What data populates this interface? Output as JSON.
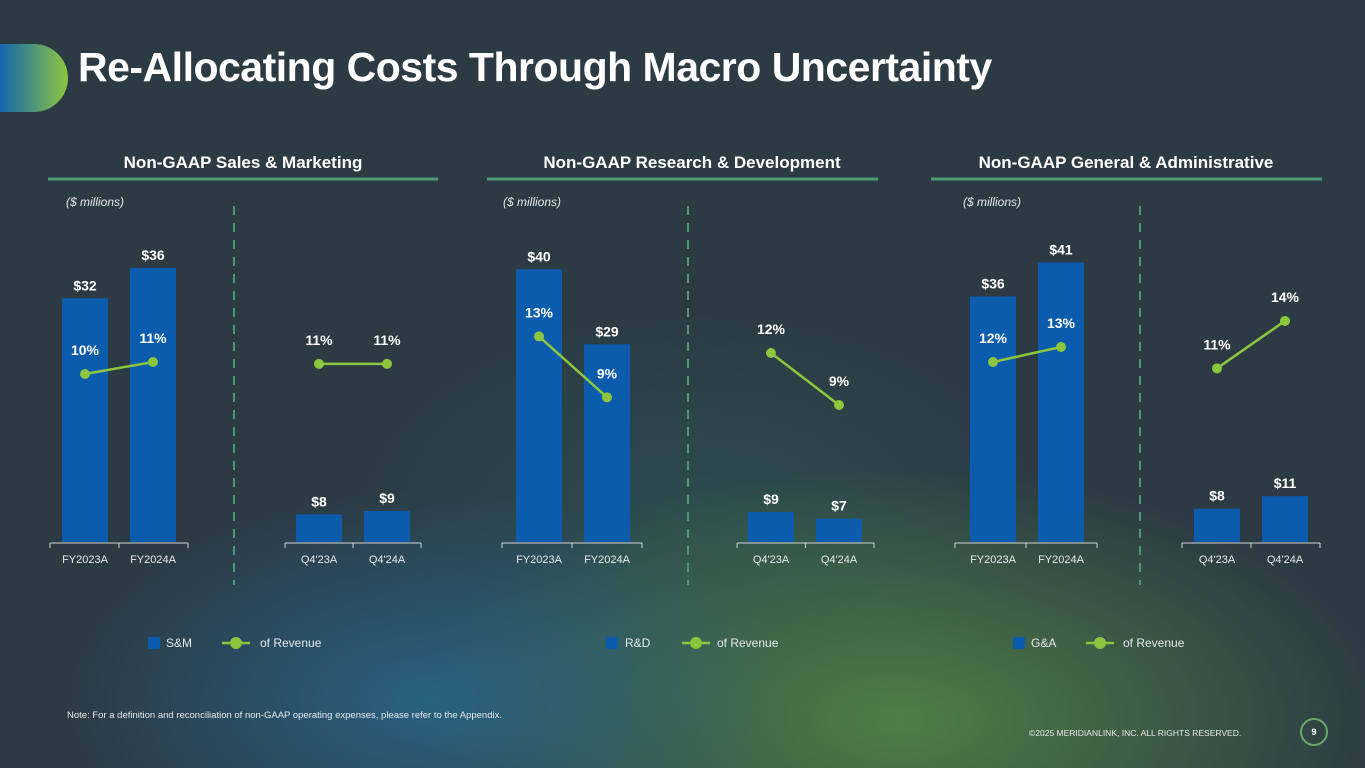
{
  "title": "Re-Allocating Costs Through Macro Uncertainty",
  "note": "Note: For a definition and reconciliation of non-GAAP operating expenses, please refer to the Appendix.",
  "copyright": "©2025 MERIDIANLINK, INC. ALL RIGHTS RESERVED.",
  "page_number": "9",
  "colors": {
    "bar": "#0b5cad",
    "line": "#8cc63f",
    "header_rule": "#4c9a74",
    "divider": "#4c9a74"
  },
  "chart_data": [
    {
      "type": "bar+line",
      "title": "Non-GAAP Sales & Marketing",
      "unit_label": "($ millions)",
      "legend": {
        "bar": "S&M",
        "line": "of Revenue"
      },
      "legend_position": "bottom",
      "groups": [
        {
          "categories": [
            "FY2023A",
            "FY2024A"
          ],
          "bar_values": [
            32,
            36
          ],
          "bar_labels": [
            "$32",
            "$36"
          ],
          "ylim": [
            0,
            39.4
          ],
          "pct_values": [
            10,
            11
          ],
          "pct_labels": [
            "10%",
            "11%"
          ],
          "pct_ylim": [
            -4,
            21
          ]
        },
        {
          "categories": [
            "Q4'23A",
            "Q4'24A"
          ],
          "bar_values": [
            8,
            9
          ],
          "bar_labels": [
            "$8",
            "$9"
          ],
          "ylim": [
            0,
            87
          ],
          "pct_values": [
            11,
            11
          ],
          "pct_labels": [
            "11%",
            "11%"
          ],
          "pct_ylim": [
            -8,
            24
          ]
        }
      ]
    },
    {
      "type": "bar+line",
      "title": "Non-GAAP Research & Development",
      "unit_label": "($ millions)",
      "legend": {
        "bar": "R&D",
        "line": "of Revenue"
      },
      "legend_position": "bottom",
      "groups": [
        {
          "categories": [
            "FY2023A",
            "FY2024A"
          ],
          "bar_values": [
            40,
            29
          ],
          "bar_labels": [
            "$40",
            "$29"
          ],
          "ylim": [
            0,
            44
          ],
          "pct_values": [
            13,
            9
          ],
          "pct_labels": [
            "13%",
            "9%"
          ],
          "pct_ylim": [
            -0.5,
            19.2
          ]
        },
        {
          "categories": [
            "Q4'23A",
            "Q4'24A"
          ],
          "bar_values": [
            9,
            7
          ],
          "bar_labels": [
            "$9",
            "$7"
          ],
          "ylim": [
            0,
            90
          ],
          "pct_values": [
            12,
            9
          ],
          "pct_labels": [
            "12%",
            "9%"
          ],
          "pct_ylim": [
            1.1,
            18.4
          ]
        }
      ]
    },
    {
      "type": "bar+line",
      "title": "Non-GAAP General & Administrative",
      "unit_label": "($ millions)",
      "legend": {
        "bar": "G&A",
        "line": "of Revenue"
      },
      "legend_position": "bottom",
      "groups": [
        {
          "categories": [
            "FY2023A",
            "FY2024A"
          ],
          "bar_values": [
            36,
            41
          ],
          "bar_labels": [
            "$36",
            "$41"
          ],
          "ylim": [
            0,
            44
          ],
          "pct_values": [
            12,
            13
          ],
          "pct_labels": [
            "12%",
            "13%"
          ],
          "pct_ylim": [
            0,
            20
          ]
        },
        {
          "categories": [
            "Q4'23A",
            "Q4'24A"
          ],
          "bar_values": [
            8,
            11
          ],
          "bar_labels": [
            "$8",
            "$11"
          ],
          "ylim": [
            0,
            72
          ],
          "pct_values": [
            11,
            14
          ],
          "pct_labels": [
            "11%",
            "14%"
          ],
          "pct_ylim": [
            0,
            19
          ]
        }
      ]
    }
  ]
}
